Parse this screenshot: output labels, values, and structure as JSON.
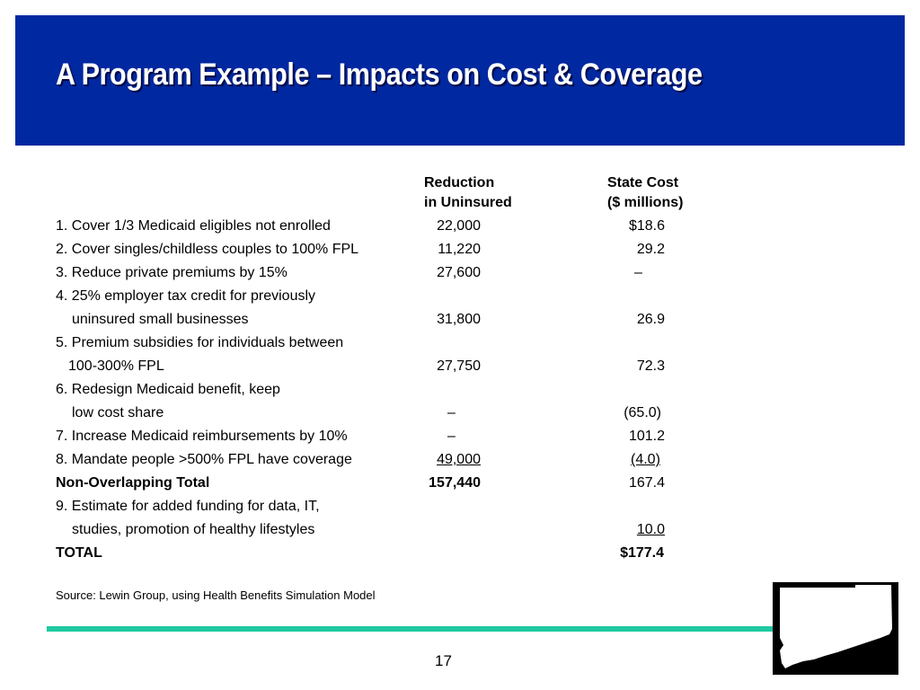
{
  "slide": {
    "title": "A Program Example – Impacts on Cost & Coverage",
    "page_number": "17",
    "source": "Source:  Lewin Group, using Health Benefits Simulation Model"
  },
  "table": {
    "headers": {
      "reduction_line1": "Reduction",
      "reduction_line2": "in Uninsured",
      "cost_line1": "State Cost",
      "cost_line2": "($ millions)"
    },
    "rows": [
      {
        "label": "1. Cover 1/3 Medicaid eligibles not enrolled",
        "reduction": "22,000",
        "cost": "$18.6"
      },
      {
        "label": "2. Cover singles/childless couples to 100% FPL",
        "reduction": "11,220",
        "cost": "29.2"
      },
      {
        "label": "3. Reduce private premiums by 15%",
        "reduction": "27,600",
        "cost": "–"
      },
      {
        "label": "4. 25% employer tax credit for previously",
        "reduction": "",
        "cost": ""
      },
      {
        "label": "uninsured small businesses",
        "reduction": "31,800",
        "cost": "26.9"
      },
      {
        "label": "5. Premium subsidies for individuals between",
        "reduction": "",
        "cost": ""
      },
      {
        "label": "100-300% FPL",
        "reduction": "27,750",
        "cost": "72.3"
      },
      {
        "label": "6. Redesign Medicaid benefit, keep",
        "reduction": "",
        "cost": ""
      },
      {
        "label": "low cost share",
        "reduction": "–",
        "cost": "(65.0)"
      },
      {
        "label": "7. Increase Medicaid reimbursements by 10%",
        "reduction": "–",
        "cost": "101.2"
      },
      {
        "label": "8. Mandate people >500% FPL have coverage",
        "reduction": "49,000",
        "cost": "(4.0)"
      },
      {
        "label": "Non-Overlapping Total",
        "reduction": "157,440",
        "cost": "167.4"
      },
      {
        "label": "9. Estimate for added funding for data, IT,",
        "reduction": "",
        "cost": ""
      },
      {
        "label": "studies, promotion of healthy lifestyles",
        "reduction": "",
        "cost": "10.0"
      },
      {
        "label": "TOTAL",
        "reduction": "",
        "cost": "$177.4"
      }
    ]
  },
  "colors": {
    "title_bar": "#0028a0",
    "rule": "#1fc9a0"
  },
  "icons": {
    "map": "connecticut-map-icon"
  }
}
